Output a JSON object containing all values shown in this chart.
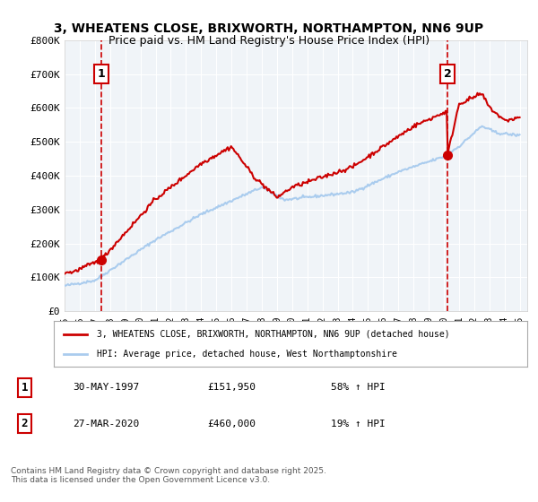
{
  "title_line1": "3, WHEATENS CLOSE, BRIXWORTH, NORTHAMPTON, NN6 9UP",
  "title_line2": "Price paid vs. HM Land Registry's House Price Index (HPI)",
  "ylabel": "",
  "ylim": [
    0,
    800000
  ],
  "yticks": [
    0,
    100000,
    200000,
    300000,
    400000,
    500000,
    600000,
    700000,
    800000
  ],
  "ytick_labels": [
    "£0",
    "£100K",
    "£200K",
    "£300K",
    "£400K",
    "£500K",
    "£600K",
    "£700K",
    "£800K"
  ],
  "red_color": "#cc0000",
  "blue_color": "#aaccee",
  "dashed_color": "#cc0000",
  "point1_date": 1997.41,
  "point1_price": 151950,
  "point2_date": 2020.24,
  "point2_price": 460000,
  "legend_label1": "3, WHEATENS CLOSE, BRIXWORTH, NORTHAMPTON, NN6 9UP (detached house)",
  "legend_label2": "HPI: Average price, detached house, West Northamptonshire",
  "annotation1": "1",
  "annotation2": "2",
  "info1_date": "30-MAY-1997",
  "info1_price": "£151,950",
  "info1_hpi": "58% ↑ HPI",
  "info2_date": "27-MAR-2020",
  "info2_price": "£460,000",
  "info2_hpi": "19% ↑ HPI",
  "footer": "Contains HM Land Registry data © Crown copyright and database right 2025.\nThis data is licensed under the Open Government Licence v3.0.",
  "bg_color": "#f0f4f8",
  "plot_bg_color": "#f0f4f8"
}
